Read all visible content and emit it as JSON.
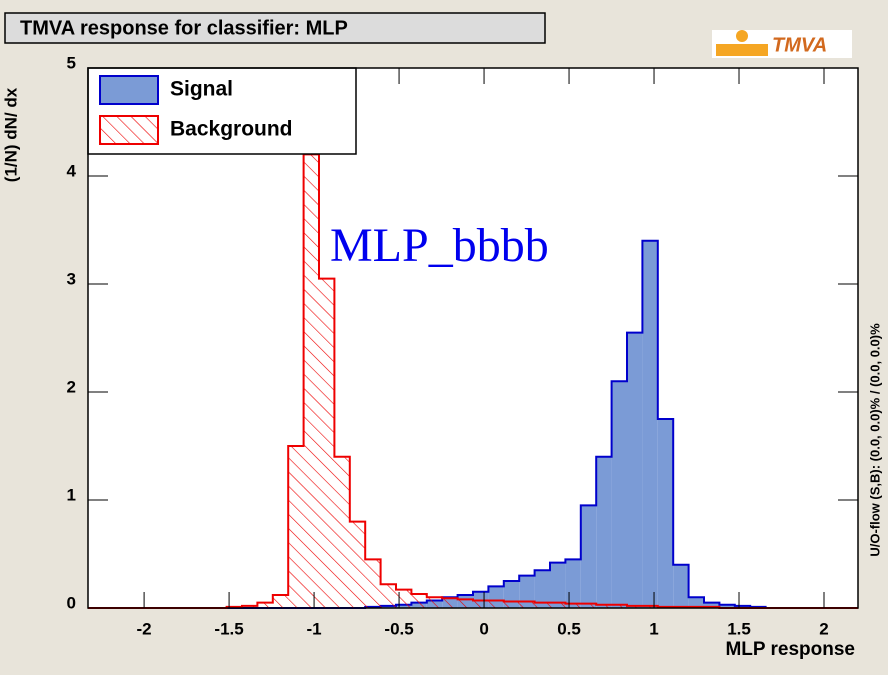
{
  "chart_data": {
    "type": "histogram",
    "title": "TMVA response for classifier: MLP",
    "logo": "TMVA",
    "x_label": "MLP response",
    "y_label": "(1/N) dN/ dx",
    "annotation": "MLP_bbbb",
    "overflow_note": "U/O-flow (S,B): (0.0, 0.0)% / (0.0, 0.0)%",
    "bins": [
      -2.33,
      -2.2394,
      -2.1488,
      -2.0582,
      -1.9676,
      -1.877,
      -1.7864,
      -1.6958,
      -1.6052,
      -1.5146,
      -1.424,
      -1.3334,
      -1.2428,
      -1.1522,
      -1.0616,
      -0.971,
      -0.8804,
      -0.7898,
      -0.6992,
      -0.6086,
      -0.518,
      -0.4274,
      -0.3368,
      -0.2462,
      -0.1556,
      -0.065,
      0.0256,
      0.1162,
      0.2068,
      0.2974,
      0.388,
      0.4786,
      0.5692,
      0.6598,
      0.7504,
      0.841,
      0.9316,
      1.0222,
      1.1128,
      1.2034,
      1.294,
      1.3846,
      1.4752,
      1.5658,
      1.6564,
      1.747,
      1.8376,
      1.9282,
      2.0188,
      2.1094,
      2.2
    ],
    "series": [
      {
        "name": "Signal",
        "color": "#0000cc",
        "fill": "#7b9bd6",
        "values": [
          0,
          0,
          0,
          0,
          0,
          0,
          0,
          0,
          0,
          0,
          0,
          0,
          0,
          0,
          0,
          0,
          0,
          0,
          0.01,
          0.02,
          0.03,
          0.05,
          0.07,
          0.1,
          0.12,
          0.15,
          0.2,
          0.25,
          0.3,
          0.35,
          0.42,
          0.45,
          0.95,
          1.4,
          2.1,
          2.55,
          3.4,
          1.75,
          0.4,
          0.1,
          0.05,
          0.03,
          0.02,
          0.01,
          0,
          0,
          0,
          0,
          0,
          0
        ]
      },
      {
        "name": "Background",
        "color": "#ee0000",
        "hatch": true,
        "values": [
          0,
          0,
          0,
          0,
          0,
          0,
          0,
          0,
          0,
          0.01,
          0.02,
          0.05,
          0.12,
          1.5,
          4.2,
          3.05,
          1.4,
          0.8,
          0.45,
          0.22,
          0.17,
          0.13,
          0.1,
          0.09,
          0.08,
          0.07,
          0.07,
          0.06,
          0.06,
          0.05,
          0.05,
          0.04,
          0.04,
          0.03,
          0.03,
          0.02,
          0.02,
          0.01,
          0.01,
          0.01,
          0.01,
          0,
          0,
          0,
          0,
          0,
          0,
          0,
          0,
          0
        ]
      }
    ],
    "xlim": [
      -2.33,
      2.2
    ],
    "ylim": [
      0,
      5
    ],
    "xticks": [
      -2,
      -1.5,
      -1,
      -0.5,
      0,
      0.5,
      1,
      1.5,
      2
    ],
    "yticks": [
      0,
      1,
      2,
      3,
      4,
      5
    ],
    "legend": "upper left"
  }
}
